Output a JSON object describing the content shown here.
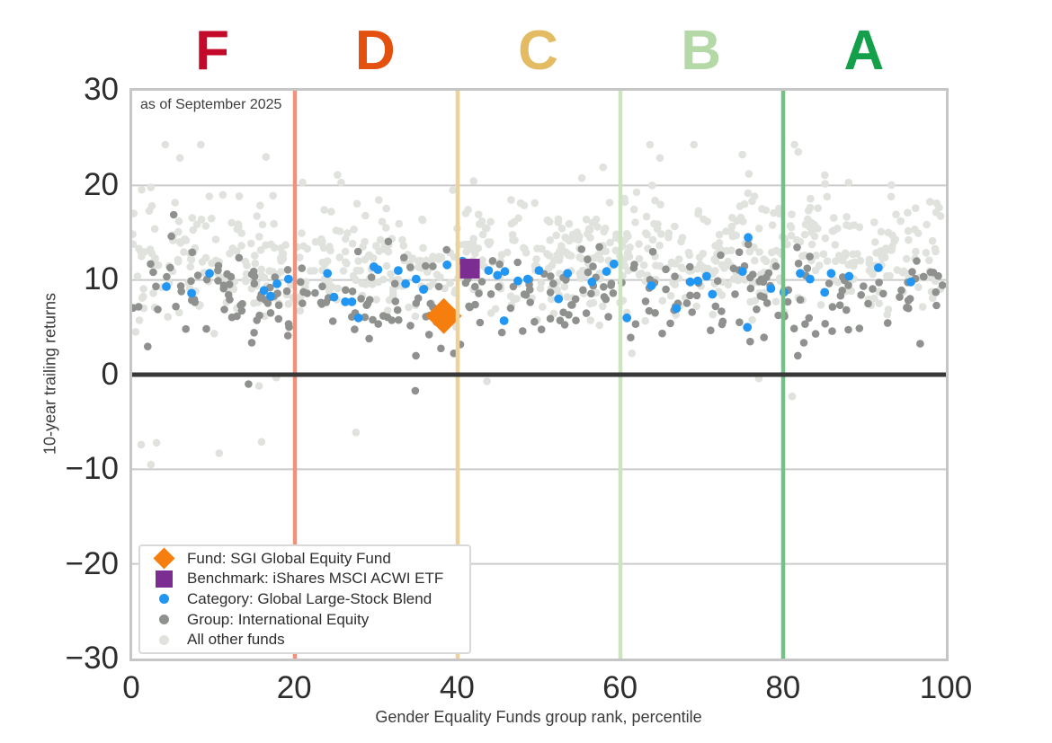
{
  "legend": {
    "items": [
      {
        "label": "Fund: SGI Global Equity Fund",
        "marker": "diamond",
        "color": "#f57e0e"
      },
      {
        "label": "Benchmark: iShares MSCI ACWI ETF",
        "marker": "square",
        "color": "#7b2d91"
      },
      {
        "label": "Category: Global Large-Stock Blend",
        "marker": "dot",
        "color": "#2196f3"
      },
      {
        "label": "Group: International Equity",
        "marker": "dot",
        "color": "#8f918f"
      },
      {
        "label": "All other funds",
        "marker": "dot",
        "color": "#dfe2dd"
      }
    ]
  },
  "chart_data": {
    "type": "scatter",
    "xlabel": "Gender Equality Funds group rank, percentile",
    "ylabel": "10-year trailing returns",
    "annotation": "as of September 2025",
    "xlim": [
      0,
      100
    ],
    "ylim": [
      -30,
      30
    ],
    "x_tick_values": [
      0,
      20,
      40,
      60,
      80,
      100
    ],
    "x_tick_labels": [
      "0",
      "20",
      "40",
      "60",
      "80",
      "100"
    ],
    "y_tick_values": [
      30,
      20,
      10,
      0,
      -10,
      -20,
      -30
    ],
    "y_tick_labels": [
      "30",
      "20",
      "10",
      "0",
      "−10",
      "−20",
      "−30"
    ],
    "gridlines_y": [
      20,
      10,
      -10,
      -20
    ],
    "grid_color": "#cbcbcb",
    "spine_color": "#c6c6c6",
    "grade_bands": [
      {
        "label": "F",
        "x_center": 10,
        "color": "#c40a2a"
      },
      {
        "label": "D",
        "x_center": 30,
        "color": "#e4500e"
      },
      {
        "label": "C",
        "x_center": 50,
        "color": "#e3bb62"
      },
      {
        "label": "B",
        "x_center": 70,
        "color": "#b4d9a6"
      },
      {
        "label": "A",
        "x_center": 90,
        "color": "#14a04a"
      }
    ],
    "grade_lines": [
      {
        "x": 20,
        "color": "#f0917c"
      },
      {
        "x": 40,
        "color": "#edd29c"
      },
      {
        "x": 60,
        "color": "#cbe5c1"
      },
      {
        "x": 80,
        "color": "#75c087"
      }
    ],
    "zero_line": {
      "y": 0,
      "color": "#383838"
    },
    "series": {
      "fund": {
        "name": "Fund: SGI Global Equity Fund",
        "marker": "diamond",
        "color": "#f57e0e",
        "point": [
          38.3,
          6.2
        ]
      },
      "benchmark": {
        "name": "Benchmark: iShares MSCI ACWI ETF",
        "marker": "square",
        "color": "#7b2d91",
        "point": [
          41.5,
          11.2
        ]
      },
      "category": {
        "name": "Category: Global Large-Stock Blend",
        "marker": "dot",
        "color": "#2196f3",
        "points": [
          [
            4.2,
            9.3
          ],
          [
            7.3,
            8.6
          ],
          [
            9.5,
            10.7
          ],
          [
            16.2,
            8.9
          ],
          [
            17.0,
            8.3
          ],
          [
            17.8,
            9.6
          ],
          [
            19.2,
            10.1
          ],
          [
            24.0,
            10.7
          ],
          [
            24.8,
            8.2
          ],
          [
            26.2,
            7.7
          ],
          [
            27.0,
            7.7
          ],
          [
            27.8,
            6.0
          ],
          [
            29.7,
            11.4
          ],
          [
            30.2,
            11.1
          ],
          [
            32.7,
            11.0
          ],
          [
            33.6,
            9.6
          ],
          [
            34.9,
            10.1
          ],
          [
            35.8,
            9.0
          ],
          [
            38.7,
            11.6
          ],
          [
            40.6,
            12.0
          ],
          [
            43.8,
            11.0
          ],
          [
            44.9,
            10.5
          ],
          [
            45.7,
            5.7
          ],
          [
            45.8,
            10.9
          ],
          [
            47.4,
            9.9
          ],
          [
            48.6,
            10.1
          ],
          [
            50.0,
            11.0
          ],
          [
            52.4,
            8.0
          ],
          [
            53.5,
            10.7
          ],
          [
            56.5,
            9.8
          ],
          [
            58.3,
            10.9
          ],
          [
            59.2,
            11.7
          ],
          [
            60.8,
            6.0
          ],
          [
            63.8,
            9.4
          ],
          [
            66.9,
            7.0
          ],
          [
            68.6,
            9.8
          ],
          [
            69.5,
            9.9
          ],
          [
            70.6,
            10.4
          ],
          [
            71.3,
            8.5
          ],
          [
            75.0,
            10.9
          ],
          [
            75.6,
            5.0
          ],
          [
            75.7,
            14.5
          ],
          [
            78.5,
            9.1
          ],
          [
            80.1,
            8.7
          ],
          [
            82.1,
            10.7
          ],
          [
            83.3,
            10.1
          ],
          [
            85.1,
            8.7
          ],
          [
            85.9,
            10.7
          ],
          [
            88.1,
            10.4
          ],
          [
            91.7,
            11.3
          ],
          [
            95.7,
            9.8
          ]
        ]
      },
      "group": {
        "name": "Group: International Equity",
        "marker": "dot",
        "color": "#8f918f",
        "cloud": {
          "seed": 13,
          "x_range": [
            0,
            100
          ],
          "y_clamp": [
            2.0,
            16.5
          ],
          "components": [
            {
              "n": 295,
              "mean": 8.2,
              "std": 2.5
            }
          ]
        },
        "outliers": [
          [
            14.3,
            -1.0
          ],
          [
            34.8,
            -1.7
          ],
          [
            5.1,
            16.9
          ]
        ]
      },
      "other": {
        "name": "All other funds",
        "marker": "dot",
        "color": "#dfe2dd",
        "cloud": {
          "seed": 7,
          "x_range": [
            0,
            100
          ],
          "y_clamp": [
            1.6,
            24.3
          ],
          "components": [
            {
              "n": 700,
              "mean": 12.3,
              "std": 3.1
            },
            {
              "n": 75,
              "mean": 15.5,
              "std": 4.2
            }
          ]
        },
        "outliers": [
          [
            1.1,
            -7.4
          ],
          [
            3.0,
            -7.2
          ],
          [
            2.3,
            -9.5
          ],
          [
            10.7,
            -8.3
          ],
          [
            15.9,
            -7.1
          ],
          [
            27.5,
            -6.1
          ],
          [
            15.6,
            -1.2
          ],
          [
            17.7,
            -0.3
          ],
          [
            43.6,
            -0.7
          ],
          [
            77.0,
            -0.4
          ],
          [
            81.1,
            -2.3
          ]
        ]
      }
    }
  }
}
